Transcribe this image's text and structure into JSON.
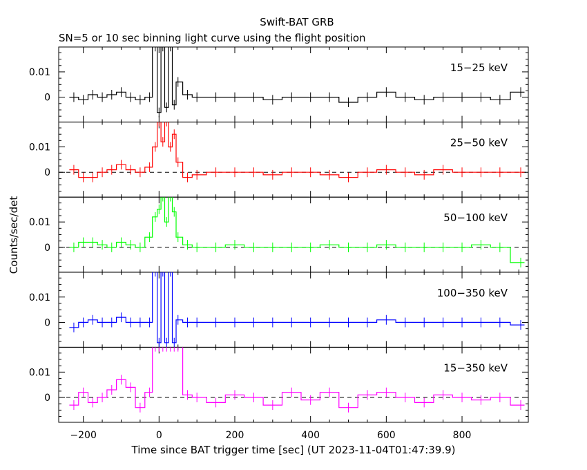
{
  "chart_data": {
    "type": "line",
    "title": "Swift-BAT GRB",
    "subtitle": "SN=5 or 10 sec binning light curve using the flight position",
    "xlabel": "Time since BAT trigger time [sec] (UT 2023-11-04T01:47:39.9)",
    "ylabel": "Counts/sec/det",
    "xlim": [
      -265,
      975
    ],
    "x_ticks": [
      -200,
      0,
      200,
      400,
      600,
      800
    ],
    "x_tick_labels": [
      "−200",
      "0",
      "200",
      "400",
      "600",
      "800"
    ],
    "shared_x": true,
    "panels": [
      {
        "name": "15−25 keV",
        "color": "#000000",
        "ylim": [
          -0.0098,
          0.0198
        ],
        "y_ticks": [
          0,
          0.01
        ],
        "y_tick_labels": [
          "0",
          "0.01"
        ],
        "zero_line": false,
        "x": [
          -225,
          -200,
          -175,
          -150,
          -125,
          -100,
          -75,
          -50,
          -25,
          -10,
          0,
          10,
          20,
          30,
          40,
          50,
          75,
          100,
          150,
          200,
          250,
          300,
          350,
          400,
          450,
          500,
          550,
          600,
          650,
          700,
          750,
          800,
          850,
          900,
          955
        ],
        "values": [
          0.0,
          -0.001,
          0.001,
          0.0,
          0.001,
          0.002,
          0.0,
          -0.001,
          0.0,
          0.02,
          -0.006,
          0.02,
          -0.004,
          0.02,
          -0.003,
          0.006,
          0.001,
          0.0,
          0.0,
          0.0,
          0.0,
          -0.001,
          0.0,
          0.0,
          0.0,
          -0.002,
          0.0,
          0.002,
          0.0,
          -0.001,
          0.0,
          0.0,
          0.0,
          -0.001,
          0.002
        ]
      },
      {
        "name": "25−50 keV",
        "color": "#ff0000",
        "ylim": [
          -0.0098,
          0.0198
        ],
        "y_ticks": [
          0,
          0.01
        ],
        "y_tick_labels": [
          "0",
          "0.01"
        ],
        "zero_line": true,
        "x": [
          -225,
          -200,
          -175,
          -150,
          -125,
          -100,
          -75,
          -50,
          -25,
          -10,
          0,
          10,
          20,
          30,
          40,
          50,
          75,
          100,
          150,
          200,
          250,
          300,
          350,
          400,
          450,
          500,
          550,
          600,
          650,
          700,
          750,
          800,
          850,
          900,
          955
        ],
        "values": [
          0.001,
          -0.002,
          -0.002,
          0.0,
          0.001,
          0.003,
          0.001,
          0.0,
          0.002,
          0.01,
          0.02,
          0.012,
          0.02,
          0.01,
          0.015,
          0.004,
          -0.002,
          -0.001,
          0.0,
          0.0,
          0.0,
          -0.001,
          0.0,
          0.0,
          -0.001,
          -0.002,
          0.0,
          0.001,
          0.0,
          -0.001,
          0.001,
          0.0,
          0.0,
          0.0,
          0.0
        ]
      },
      {
        "name": "50−100 keV",
        "color": "#00ff00",
        "ylim": [
          -0.0098,
          0.0198
        ],
        "y_ticks": [
          0,
          0.01
        ],
        "y_tick_labels": [
          "0",
          "0.01"
        ],
        "zero_line": true,
        "x": [
          -225,
          -200,
          -175,
          -150,
          -125,
          -100,
          -75,
          -50,
          -25,
          -10,
          0,
          10,
          20,
          30,
          40,
          50,
          75,
          100,
          150,
          200,
          250,
          300,
          350,
          400,
          450,
          500,
          550,
          600,
          650,
          700,
          750,
          800,
          850,
          900,
          955
        ],
        "values": [
          0.0,
          0.002,
          0.002,
          0.001,
          0.0,
          0.002,
          0.001,
          0.0,
          0.004,
          0.012,
          0.015,
          0.02,
          0.01,
          0.02,
          0.014,
          0.004,
          0.001,
          0.0,
          0.0,
          0.001,
          0.0,
          0.0,
          0.0,
          0.0,
          0.001,
          0.0,
          0.0,
          0.001,
          0.0,
          0.0,
          0.0,
          0.0,
          0.001,
          0.0,
          -0.006
        ]
      },
      {
        "name": "100−350 keV",
        "color": "#0000ff",
        "ylim": [
          -0.0098,
          0.0198
        ],
        "y_ticks": [
          0,
          0.01
        ],
        "y_tick_labels": [
          "0",
          "0.01"
        ],
        "zero_line": false,
        "x": [
          -225,
          -200,
          -175,
          -150,
          -125,
          -100,
          -75,
          -50,
          -25,
          -10,
          0,
          10,
          20,
          30,
          40,
          50,
          75,
          100,
          150,
          200,
          250,
          300,
          350,
          400,
          450,
          500,
          550,
          600,
          650,
          700,
          750,
          800,
          850,
          900,
          955
        ],
        "values": [
          -0.002,
          0.0,
          0.001,
          0.0,
          0.0,
          0.002,
          0.0,
          0.0,
          0.0,
          0.02,
          -0.008,
          0.02,
          -0.008,
          0.02,
          -0.008,
          0.001,
          0.0,
          0.0,
          0.0,
          0.0,
          0.0,
          0.0,
          0.0,
          0.0,
          0.0,
          0.0,
          0.0,
          0.001,
          0.0,
          0.0,
          0.0,
          0.0,
          0.0,
          0.0,
          -0.001
        ]
      },
      {
        "name": "15−350 keV",
        "color": "#ff00ff",
        "ylim": [
          -0.0098,
          0.0198
        ],
        "y_ticks": [
          0,
          0.01
        ],
        "y_tick_labels": [
          "0",
          "0.01"
        ],
        "zero_line": true,
        "x": [
          -225,
          -200,
          -175,
          -150,
          -125,
          -100,
          -75,
          -50,
          -25,
          -10,
          0,
          10,
          20,
          30,
          40,
          50,
          75,
          100,
          150,
          200,
          250,
          300,
          350,
          400,
          450,
          500,
          550,
          600,
          650,
          700,
          750,
          800,
          850,
          900,
          955
        ],
        "values": [
          -0.003,
          0.002,
          -0.002,
          0.0,
          0.003,
          0.007,
          0.004,
          -0.004,
          0.002,
          0.02,
          0.02,
          0.02,
          0.02,
          0.02,
          0.02,
          0.02,
          0.001,
          0.0,
          -0.002,
          0.001,
          0.0,
          -0.003,
          0.002,
          -0.001,
          0.002,
          -0.004,
          0.001,
          0.002,
          0.0,
          -0.002,
          0.001,
          0.0,
          -0.001,
          0.0,
          -0.003
        ]
      }
    ]
  }
}
